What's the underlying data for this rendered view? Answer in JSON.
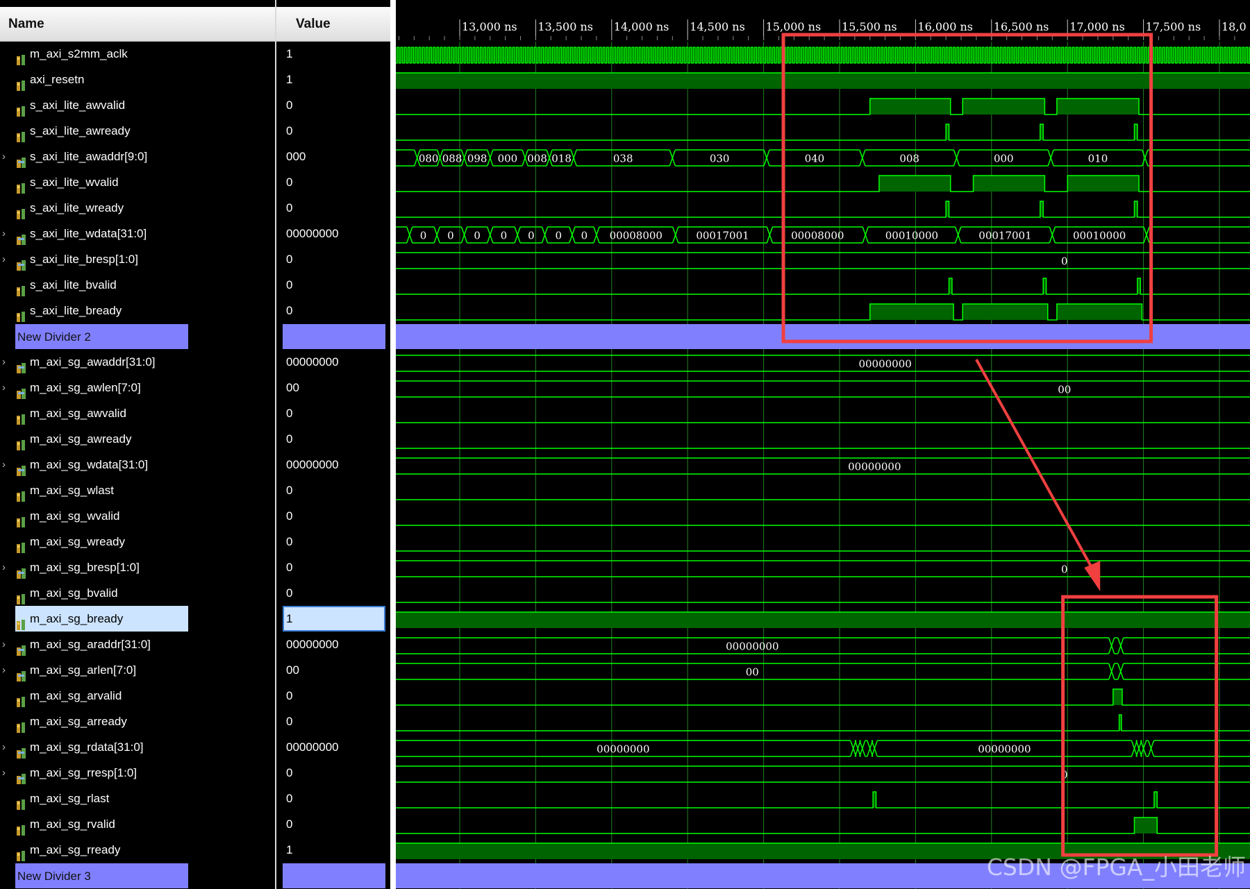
{
  "header": {
    "name_col": "Name",
    "value_col": "Value"
  },
  "time_ticks": [
    "13,000 ns",
    "13,500 ns",
    "14,000 ns",
    "14,500 ns",
    "15,000 ns",
    "15,500 ns",
    "16,000 ns",
    "16,500 ns",
    "17,000 ns",
    "17,500 ns",
    "18,0"
  ],
  "signals": [
    {
      "name": "m_axi_s2mm_aclk",
      "value": "1",
      "icon": "scalar-signal-icon",
      "bus": false
    },
    {
      "name": "axi_resetn",
      "value": "1",
      "icon": "scalar-signal-icon",
      "bus": false
    },
    {
      "name": "s_axi_lite_awvalid",
      "value": "0",
      "icon": "scalar-signal-icon",
      "bus": false
    },
    {
      "name": "s_axi_lite_awready",
      "value": "0",
      "icon": "scalar-signal-icon",
      "bus": false
    },
    {
      "name": "s_axi_lite_awaddr[9:0]",
      "value": "000",
      "icon": "bus-signal-icon",
      "bus": true
    },
    {
      "name": "s_axi_lite_wvalid",
      "value": "0",
      "icon": "scalar-signal-icon",
      "bus": false
    },
    {
      "name": "s_axi_lite_wready",
      "value": "0",
      "icon": "scalar-signal-icon",
      "bus": false
    },
    {
      "name": "s_axi_lite_wdata[31:0]",
      "value": "00000000",
      "icon": "bus-signal-icon",
      "bus": true
    },
    {
      "name": "s_axi_lite_bresp[1:0]",
      "value": "0",
      "icon": "bus-signal-icon",
      "bus": true
    },
    {
      "name": "s_axi_lite_bvalid",
      "value": "0",
      "icon": "scalar-signal-icon",
      "bus": false
    },
    {
      "name": "s_axi_lite_bready",
      "value": "0",
      "icon": "scalar-signal-icon",
      "bus": false
    },
    {
      "name": "New Divider 2",
      "value": "",
      "divider": true
    },
    {
      "name": "m_axi_sg_awaddr[31:0]",
      "value": "00000000",
      "icon": "bus-signal-icon",
      "bus": true
    },
    {
      "name": "m_axi_sg_awlen[7:0]",
      "value": "00",
      "icon": "bus-signal-icon",
      "bus": true
    },
    {
      "name": "m_axi_sg_awvalid",
      "value": "0",
      "icon": "scalar-signal-icon",
      "bus": false
    },
    {
      "name": "m_axi_sg_awready",
      "value": "0",
      "icon": "scalar-signal-icon",
      "bus": false
    },
    {
      "name": "m_axi_sg_wdata[31:0]",
      "value": "00000000",
      "icon": "bus-signal-icon",
      "bus": true
    },
    {
      "name": "m_axi_sg_wlast",
      "value": "0",
      "icon": "scalar-signal-icon",
      "bus": false
    },
    {
      "name": "m_axi_sg_wvalid",
      "value": "0",
      "icon": "scalar-signal-icon",
      "bus": false
    },
    {
      "name": "m_axi_sg_wready",
      "value": "0",
      "icon": "scalar-signal-icon",
      "bus": false
    },
    {
      "name": "m_axi_sg_bresp[1:0]",
      "value": "0",
      "icon": "bus-signal-icon",
      "bus": true
    },
    {
      "name": "m_axi_sg_bvalid",
      "value": "0",
      "icon": "scalar-signal-icon",
      "bus": false
    },
    {
      "name": "m_axi_sg_bready",
      "value": "1",
      "icon": "scalar-signal-icon",
      "bus": false,
      "selected": true
    },
    {
      "name": "m_axi_sg_araddr[31:0]",
      "value": "00000000",
      "icon": "bus-signal-icon",
      "bus": true
    },
    {
      "name": "m_axi_sg_arlen[7:0]",
      "value": "00",
      "icon": "bus-signal-icon",
      "bus": true
    },
    {
      "name": "m_axi_sg_arvalid",
      "value": "0",
      "icon": "scalar-signal-icon",
      "bus": false
    },
    {
      "name": "m_axi_sg_arready",
      "value": "0",
      "icon": "scalar-signal-icon",
      "bus": false
    },
    {
      "name": "m_axi_sg_rdata[31:0]",
      "value": "00000000",
      "icon": "bus-signal-icon",
      "bus": true
    },
    {
      "name": "m_axi_sg_rresp[1:0]",
      "value": "0",
      "icon": "bus-signal-icon",
      "bus": true
    },
    {
      "name": "m_axi_sg_rlast",
      "value": "0",
      "icon": "scalar-signal-icon",
      "bus": false
    },
    {
      "name": "m_axi_sg_rvalid",
      "value": "0",
      "icon": "scalar-signal-icon",
      "bus": false
    },
    {
      "name": "m_axi_sg_rready",
      "value": "1",
      "icon": "scalar-signal-icon",
      "bus": false
    },
    {
      "name": "New Divider 3",
      "value": "",
      "divider": true
    }
  ],
  "wave_labels": {
    "awaddr": [
      "080",
      "088",
      "098",
      "000",
      "008",
      "018",
      "038",
      "030",
      "040",
      "008",
      "000",
      "010"
    ],
    "wdata": [
      "0",
      "0",
      "0",
      "0",
      "0",
      "0",
      "0",
      "00008000",
      "00017001",
      "00008000",
      "00010000",
      "00017001",
      "00010000"
    ],
    "lite_bresp": "0",
    "sg_awaddr": "00000000",
    "sg_awlen": "00",
    "sg_wdata": "00000000",
    "sg_bresp": "0",
    "sg_araddr": "00000000",
    "sg_arlen": "00",
    "sg_rdata": [
      "00000000",
      "00000000"
    ],
    "sg_rresp": "0"
  },
  "colors": {
    "wave": "#00ff00",
    "fill": "#006400",
    "grid": "#2aa52a",
    "divider": "#8080ff",
    "highlight": "#f04040"
  },
  "watermark": "CSDN @FPGA_小田老师"
}
